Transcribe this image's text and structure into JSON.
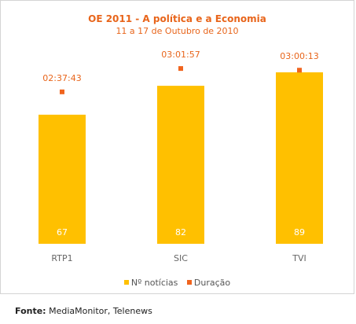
{
  "colors": {
    "title": "#E8651B",
    "bar": "#FFC000",
    "marker": "#F0641E",
    "axis_text": "#666666",
    "bar_label": "#ffffff"
  },
  "chart_data": {
    "type": "bar",
    "title": "OE 2011 - A política e a Economia",
    "subtitle": "11 a 17 de Outubro de 2010",
    "categories": [
      "RTP1",
      "SIC",
      "TVI"
    ],
    "series": [
      {
        "name": "Nº notícias",
        "type": "bar",
        "values": [
          67,
          82,
          89
        ]
      },
      {
        "name": "Duração",
        "type": "marker",
        "values": [
          "02:37:43",
          "03:01:57",
          "03:00:13"
        ],
        "seconds": [
          9463,
          10917,
          10813
        ]
      }
    ],
    "ylim_bars": [
      0,
      100
    ],
    "ylim_duration_seconds": [
      0,
      12000
    ],
    "grid": false,
    "legend_position": "bottom"
  },
  "source": {
    "label": "Fonte:",
    "text": "MediaMonitor, Telenews"
  }
}
